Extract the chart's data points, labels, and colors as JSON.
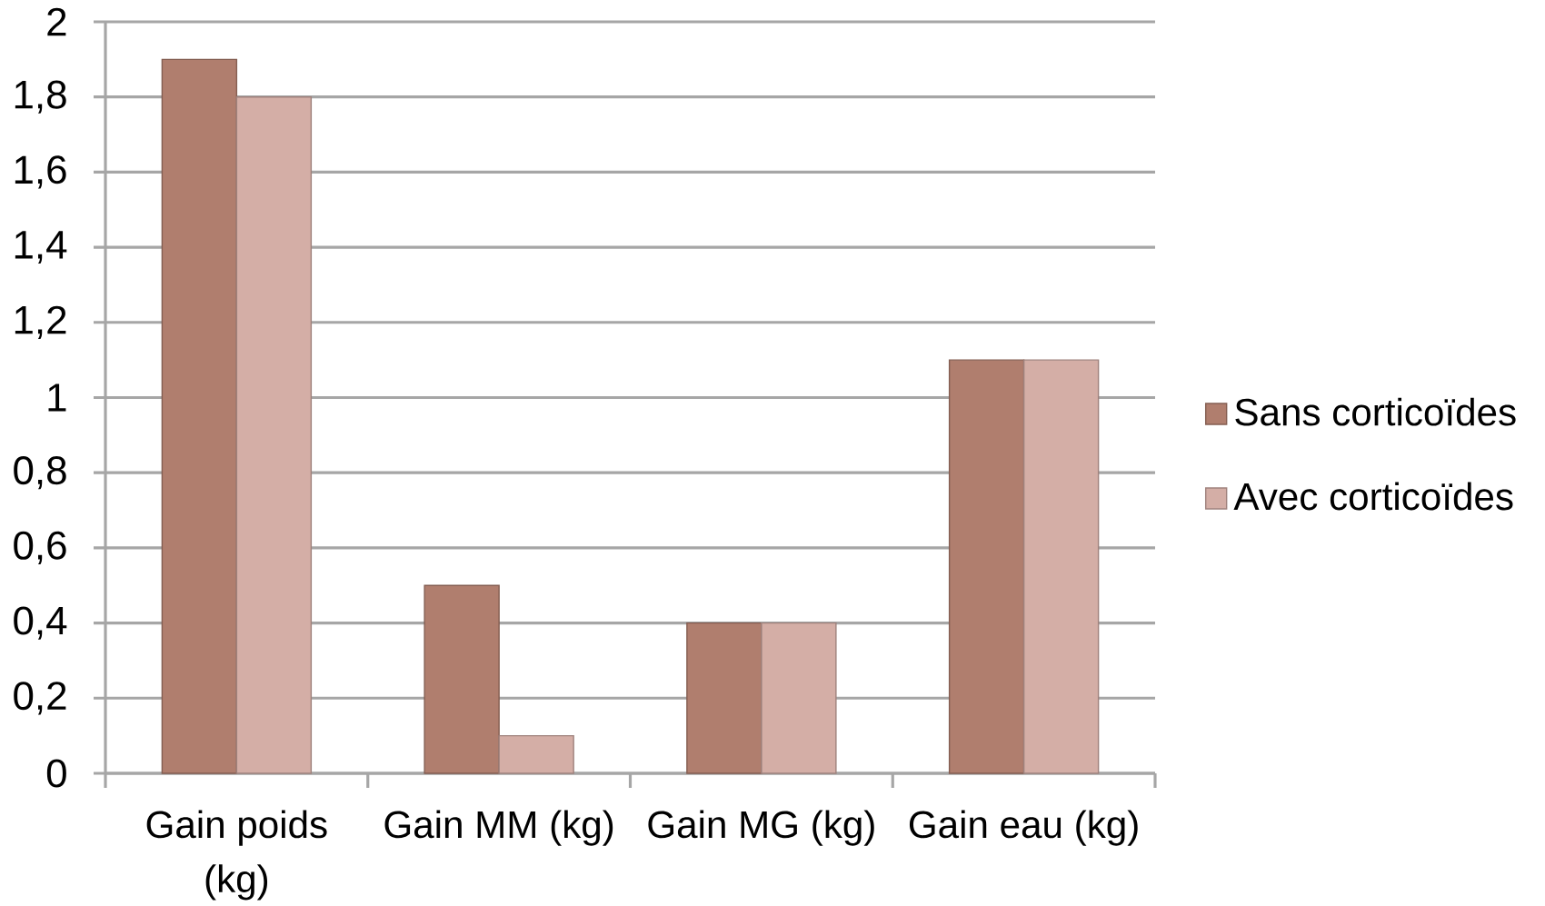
{
  "chart_data": {
    "type": "bar",
    "categories": [
      "Gain poids (kg)",
      "Gain MM (kg)",
      "Gain MG (kg)",
      "Gain eau (kg)"
    ],
    "series": [
      {
        "name": "Sans corticoïdes",
        "color": "#b07e6e",
        "values": [
          1.9,
          0.5,
          0.4,
          1.1
        ]
      },
      {
        "name": "Avec corticoïdes",
        "color": "#d4aea6",
        "values": [
          1.8,
          0.1,
          0.4,
          1.1
        ]
      }
    ],
    "ylim": [
      0,
      2
    ],
    "yticks": [
      0,
      {
        "value": 0.2,
        "label": "0,2"
      },
      {
        "value": 0.4,
        "label": "0,4"
      },
      {
        "value": 0.6,
        "label": "0,6"
      },
      {
        "value": 0.8,
        "label": "0,8"
      },
      1,
      {
        "value": 1.2,
        "label": "1,2"
      },
      {
        "value": 1.4,
        "label": "1,4"
      },
      {
        "value": 1.6,
        "label": "1,6"
      },
      {
        "value": 1.8,
        "label": "1,8"
      },
      2
    ],
    "grid": "y",
    "legend": "right"
  }
}
